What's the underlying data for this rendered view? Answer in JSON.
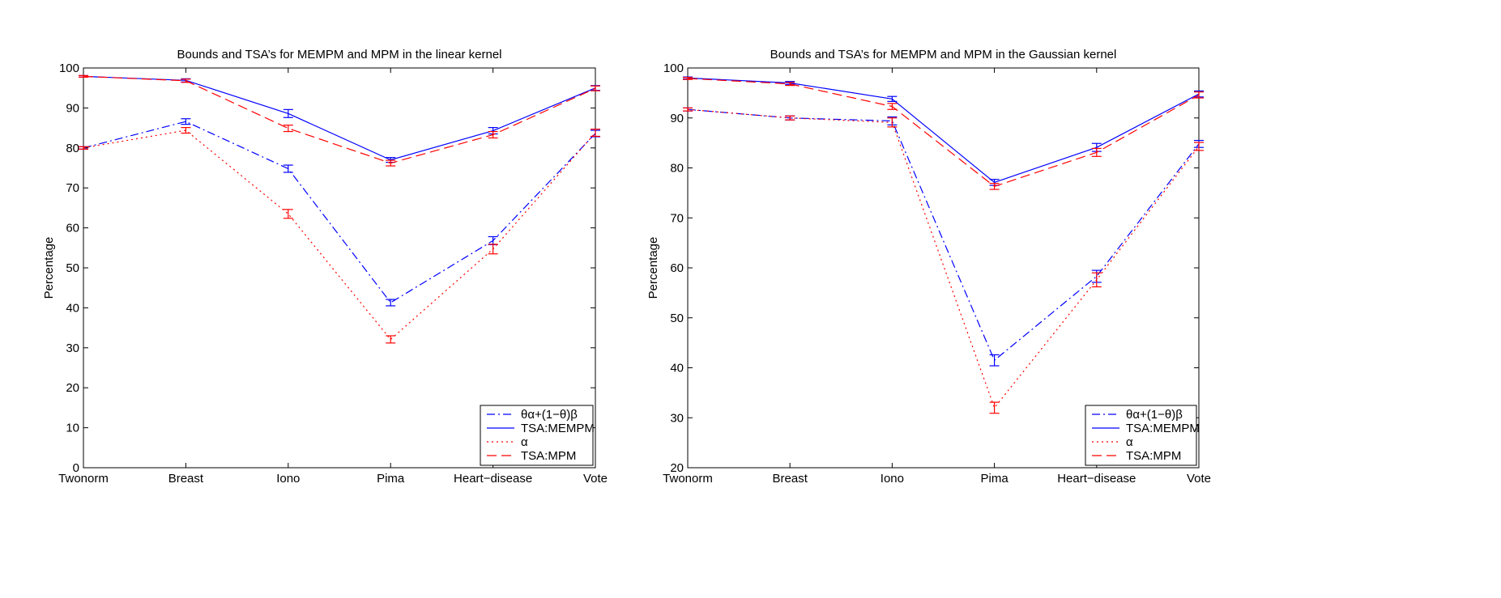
{
  "chart_data": [
    {
      "type": "line",
      "title": "Bounds and TSA’s for MEMPM and MPM in the linear kernel",
      "xlabel": "",
      "ylabel": "Percentage",
      "categories": [
        "Twonorm",
        "Breast",
        "Iono",
        "Pima",
        "Heart−disease",
        "Vote"
      ],
      "ylim": [
        0,
        100
      ],
      "yticks": [
        0,
        10,
        20,
        30,
        40,
        50,
        60,
        70,
        80,
        90,
        100
      ],
      "legend_position": "bottom-right",
      "grid": false,
      "series": [
        {
          "name": "θα+(1−θ)β",
          "color": "#0000ff",
          "dash": "dashdot",
          "values": [
            80.0,
            86.6,
            74.8,
            41.3,
            56.8,
            83.6
          ],
          "err": [
            0.3,
            0.7,
            0.9,
            0.8,
            1.0,
            0.8
          ]
        },
        {
          "name": "TSA:MEMPM",
          "color": "#0000ff",
          "dash": "solid",
          "values": [
            97.9,
            96.9,
            88.6,
            77.0,
            84.3,
            95.0
          ],
          "err": [
            0.2,
            0.4,
            1.0,
            0.6,
            0.8,
            0.6
          ]
        },
        {
          "name": "α",
          "color": "#ff0000",
          "dash": "dotted",
          "values": [
            80.0,
            84.4,
            63.5,
            32.1,
            54.7,
            83.8
          ],
          "err": [
            0.3,
            0.7,
            1.1,
            0.9,
            1.2,
            0.9
          ]
        },
        {
          "name": "TSA:MPM",
          "color": "#ff0000",
          "dash": "dashed",
          "values": [
            97.9,
            96.8,
            84.9,
            76.2,
            83.3,
            94.9
          ],
          "err": [
            0.2,
            0.4,
            0.8,
            0.7,
            0.8,
            0.6
          ]
        }
      ]
    },
    {
      "type": "line",
      "title": "Bounds and TSA’s for MEMPM and MPM in the Gaussian kernel",
      "xlabel": "",
      "ylabel": "Percentage",
      "categories": [
        "Twonorm",
        "Breast",
        "Iono",
        "Pima",
        "Heart−disease",
        "Vote"
      ],
      "ylim": [
        20,
        100
      ],
      "yticks": [
        20,
        30,
        40,
        50,
        60,
        70,
        80,
        90,
        100
      ],
      "legend_position": "bottom-right",
      "grid": false,
      "series": [
        {
          "name": "θα+(1−θ)β",
          "color": "#0000ff",
          "dash": "dashdot",
          "values": [
            91.7,
            90.0,
            89.4,
            41.5,
            58.3,
            84.8
          ],
          "err": [
            0.3,
            0.4,
            0.8,
            1.1,
            1.2,
            0.7
          ]
        },
        {
          "name": "TSA:MEMPM",
          "color": "#0000ff",
          "dash": "solid",
          "values": [
            98.0,
            97.0,
            93.8,
            77.1,
            84.1,
            94.8
          ],
          "err": [
            0.2,
            0.3,
            0.5,
            0.6,
            0.8,
            0.6
          ]
        },
        {
          "name": "α",
          "color": "#ff0000",
          "dash": "dotted",
          "values": [
            91.7,
            90.0,
            89.1,
            32.0,
            57.6,
            84.3
          ],
          "err": [
            0.3,
            0.4,
            0.9,
            1.1,
            1.4,
            0.8
          ]
        },
        {
          "name": "TSA:MPM",
          "color": "#ff0000",
          "dash": "dashed",
          "values": [
            97.9,
            96.8,
            92.3,
            76.3,
            83.1,
            94.6
          ],
          "err": [
            0.2,
            0.3,
            0.6,
            0.6,
            0.8,
            0.6
          ]
        }
      ]
    }
  ]
}
